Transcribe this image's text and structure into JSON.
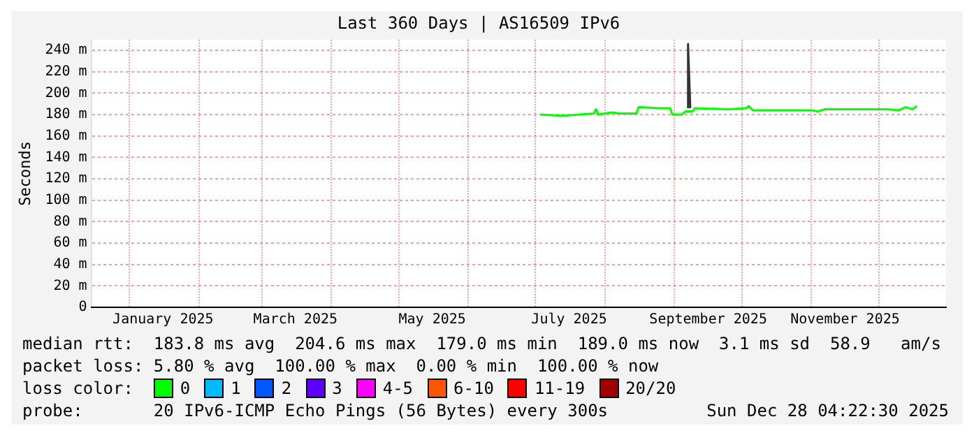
{
  "chart_data": {
    "type": "line",
    "title": "Last 360 Days | AS16509 IPv6",
    "ylabel": "Seconds",
    "legend_title": "loss color:",
    "xlim": [
      "2024-12-15",
      "2025-12-31"
    ],
    "xticks": [
      {
        "value": "2025-01-01",
        "label": null
      },
      {
        "value": "2025-01-16",
        "label": "January 2025"
      },
      {
        "value": "2025-02-01",
        "label": null
      },
      {
        "value": "2025-03-01",
        "label": null
      },
      {
        "value": "2025-03-16",
        "label": "March 2025"
      },
      {
        "value": "2025-04-01",
        "label": null
      },
      {
        "value": "2025-05-01",
        "label": null
      },
      {
        "value": "2025-05-16",
        "label": "May 2025"
      },
      {
        "value": "2025-06-01",
        "label": null
      },
      {
        "value": "2025-07-01",
        "label": null
      },
      {
        "value": "2025-07-16",
        "label": "July 2025"
      },
      {
        "value": "2025-08-01",
        "label": null
      },
      {
        "value": "2025-09-01",
        "label": null
      },
      {
        "value": "2025-09-16",
        "label": "September 2025"
      },
      {
        "value": "2025-10-01",
        "label": null
      },
      {
        "value": "2025-11-01",
        "label": null
      },
      {
        "value": "2025-11-16",
        "label": "November 2025"
      },
      {
        "value": "2025-12-01",
        "label": null
      }
    ],
    "ylim": [
      0,
      250
    ],
    "yticks": [
      0,
      {
        "value": 20,
        "label": "20 m"
      },
      {
        "value": 40,
        "label": "40 m"
      },
      {
        "value": 60,
        "label": "60 m"
      },
      {
        "value": 80,
        "label": "80 m"
      },
      {
        "value": 100,
        "label": "100 m"
      },
      {
        "value": 120,
        "label": "120 m"
      },
      {
        "value": 140,
        "label": "140 m"
      },
      {
        "value": 160,
        "label": "160 m"
      },
      {
        "value": 180,
        "label": "180 m"
      },
      {
        "value": 200,
        "label": "200 m"
      },
      {
        "value": 220,
        "label": "220 m"
      },
      {
        "value": 240,
        "label": "240 m"
      }
    ],
    "grid": true,
    "legend": "bottom",
    "marker": "none",
    "line_style": "solid",
    "series": [
      {
        "name": "0",
        "color": "#00ff00",
        "x": [
          "2025-07-03",
          "2025-07-13",
          "2025-07-27",
          "2025-07-28",
          "2025-07-29",
          "2025-08-04",
          "2025-08-08",
          "2025-08-15",
          "2025-08-16",
          "2025-08-25",
          "2025-08-30",
          "2025-08-31",
          "2025-09-04",
          "2025-09-06",
          "2025-09-09",
          "2025-09-10",
          "2025-09-25",
          "2025-10-03",
          "2025-10-04",
          "2025-10-06",
          "2025-10-20",
          "2025-11-01",
          "2025-11-04",
          "2025-11-07",
          "2025-11-25",
          "2025-12-05",
          "2025-12-10",
          "2025-12-13",
          "2025-12-16",
          "2025-12-18"
        ],
        "values": [
          180,
          179,
          181,
          185,
          180,
          182,
          181,
          181,
          187,
          186,
          186,
          180,
          180,
          183,
          183,
          186,
          185,
          186,
          188,
          184,
          184,
          184,
          183,
          185,
          185,
          185,
          184,
          187,
          185,
          188
        ]
      },
      {
        "name": "1",
        "color": "#00bbff"
      },
      {
        "name": "2",
        "color": "#0059ff"
      },
      {
        "name": "3",
        "color": "#5e00ff"
      },
      {
        "name": "4-5",
        "color": "#ff00ff"
      },
      {
        "name": "6-10",
        "color": "#ff5500"
      },
      {
        "name": "11-19",
        "color": "#ff0000"
      },
      {
        "name": "20/20",
        "color": "#a10000"
      },
      {
        "color": "#333333",
        "x": [
          "2025-09-07",
          "2025-09-07",
          "2025-09-08"
        ],
        "values": [
          186,
          246,
          186
        ]
      }
    ],
    "annotations": [
      "median rtt:  183.8 ms avg  204.6 ms max  179.0 ms min  189.0 ms now  3.1 ms sd  58.9   am/s",
      "packet loss: 5.80 % avg  100.00 % max  0.00 % min  100.00 % now",
      "probe:       20 IPv6-ICMP Echo Pings (56 Bytes) every 300s",
      "Sun Dec 28 04:22:30 2025"
    ]
  }
}
